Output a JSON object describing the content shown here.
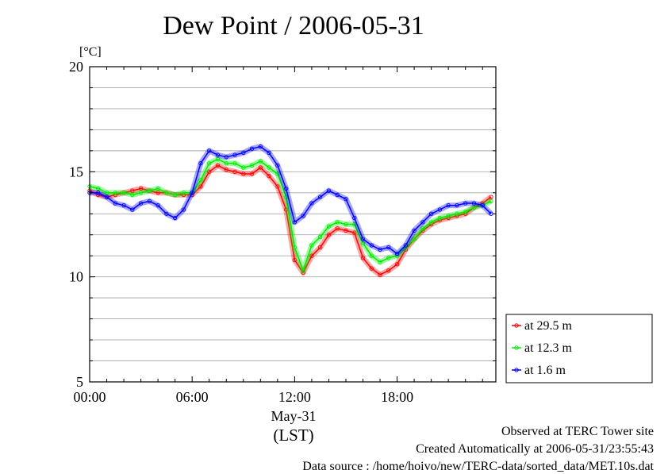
{
  "chart_data": {
    "type": "line",
    "title": "Dew Point / 2006-05-31",
    "ylabel": "[°C]",
    "ylim": [
      5,
      20
    ],
    "yticks": [
      "5",
      "10",
      "15",
      "20"
    ],
    "xlim": [
      0,
      23.5
    ],
    "xticks": [
      "00:00",
      "06:00",
      "12:00",
      "18:00"
    ],
    "xlabel_date": "May-31",
    "xlabel_unit": "(LST)",
    "grid": true,
    "legend_position": "right-bottom",
    "x_hours": [
      0,
      0.5,
      1,
      1.5,
      2,
      2.5,
      3,
      3.5,
      4,
      4.5,
      5,
      5.5,
      6,
      6.5,
      7,
      7.5,
      8,
      8.5,
      9,
      9.5,
      10,
      10.5,
      11,
      11.5,
      12,
      12.5,
      13,
      13.5,
      14,
      14.5,
      15,
      15.5,
      16,
      16.5,
      17,
      17.5,
      18,
      18.5,
      19,
      19.5,
      20,
      20.5,
      21,
      21.5,
      22,
      22.5,
      23,
      23.5
    ],
    "series": [
      {
        "name": "at 29.5 m",
        "color": "#ff0000",
        "values": [
          14.1,
          13.9,
          13.8,
          13.9,
          14.0,
          14.1,
          14.2,
          14.1,
          14.0,
          14.0,
          13.9,
          13.9,
          13.9,
          14.3,
          15.0,
          15.3,
          15.1,
          15.0,
          14.9,
          14.9,
          15.2,
          14.8,
          14.3,
          13.2,
          10.8,
          10.2,
          11.0,
          11.4,
          12.0,
          12.3,
          12.2,
          12.1,
          10.9,
          10.4,
          10.1,
          10.3,
          10.6,
          11.3,
          11.8,
          12.2,
          12.5,
          12.7,
          12.8,
          12.9,
          13.0,
          13.3,
          13.5,
          13.8
        ]
      },
      {
        "name": "at 12.3 m",
        "color": "#00ee00",
        "values": [
          14.3,
          14.2,
          14.0,
          14.0,
          14.0,
          13.9,
          14.0,
          14.1,
          14.2,
          14.0,
          13.9,
          14.0,
          14.0,
          14.6,
          15.4,
          15.6,
          15.4,
          15.4,
          15.2,
          15.3,
          15.5,
          15.2,
          14.9,
          13.8,
          11.4,
          10.3,
          11.5,
          11.9,
          12.4,
          12.6,
          12.5,
          12.5,
          11.6,
          11.0,
          10.7,
          10.9,
          11.0,
          11.4,
          11.8,
          12.3,
          12.6,
          12.8,
          12.9,
          13.0,
          13.1,
          13.3,
          13.4,
          13.6
        ]
      },
      {
        "name": "at 1.6 m",
        "color": "#0000ff",
        "values": [
          14.0,
          14.0,
          13.8,
          13.5,
          13.4,
          13.2,
          13.5,
          13.6,
          13.4,
          13.0,
          12.8,
          13.2,
          14.0,
          15.4,
          16.0,
          15.8,
          15.7,
          15.8,
          15.9,
          16.1,
          16.2,
          15.9,
          15.3,
          14.2,
          12.6,
          12.9,
          13.5,
          13.8,
          14.1,
          13.9,
          13.7,
          12.8,
          11.8,
          11.5,
          11.3,
          11.4,
          11.1,
          11.5,
          12.2,
          12.6,
          13.0,
          13.2,
          13.4,
          13.4,
          13.5,
          13.5,
          13.4,
          13.0
        ]
      }
    ]
  },
  "footer": {
    "site": "Observed at TERC Tower site",
    "created": "Created Automatically at 2006-05-31/23:55:43",
    "source": "Data source : /home/hoivo/new/TERC-data/sorted_data/MET.10s.dat"
  }
}
